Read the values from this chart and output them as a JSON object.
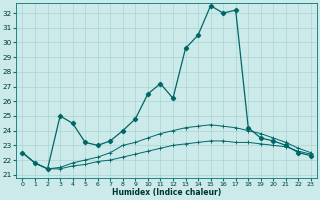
{
  "xlabel": "Humidex (Indice chaleur)",
  "background_color": "#cceaea",
  "grid_color": "#aad4d4",
  "line_color": "#006666",
  "xlim": [
    -0.5,
    23.5
  ],
  "ylim_min": 20.8,
  "ylim_max": 32.7,
  "yticks": [
    21,
    22,
    23,
    24,
    25,
    26,
    27,
    28,
    29,
    30,
    31,
    32
  ],
  "xticks": [
    0,
    1,
    2,
    3,
    4,
    5,
    6,
    7,
    8,
    9,
    10,
    11,
    12,
    13,
    14,
    15,
    16,
    17,
    18,
    19,
    20,
    21,
    22,
    23
  ],
  "hours": [
    0,
    1,
    2,
    3,
    4,
    5,
    6,
    7,
    8,
    9,
    10,
    11,
    12,
    13,
    14,
    15,
    16,
    17,
    18,
    19,
    20,
    21,
    22,
    23
  ],
  "y_main": [
    22.5,
    21.8,
    21.4,
    25.0,
    24.5,
    23.2,
    23.0,
    23.3,
    24.0,
    24.8,
    26.5,
    27.2,
    26.2,
    29.6,
    30.5,
    32.5,
    32.0,
    32.2,
    24.2,
    23.5,
    23.3,
    23.0,
    22.5,
    22.3
  ],
  "y_mid": [
    22.5,
    21.8,
    21.4,
    21.5,
    21.8,
    22.0,
    22.2,
    22.5,
    23.0,
    23.2,
    23.5,
    23.8,
    24.0,
    24.2,
    24.3,
    24.4,
    24.3,
    24.2,
    24.0,
    23.8,
    23.5,
    23.2,
    22.8,
    22.5
  ],
  "y_low": [
    22.5,
    21.8,
    21.4,
    21.4,
    21.6,
    21.7,
    21.9,
    22.0,
    22.2,
    22.4,
    22.6,
    22.8,
    23.0,
    23.1,
    23.2,
    23.3,
    23.3,
    23.2,
    23.2,
    23.1,
    23.0,
    22.9,
    22.6,
    22.4
  ]
}
